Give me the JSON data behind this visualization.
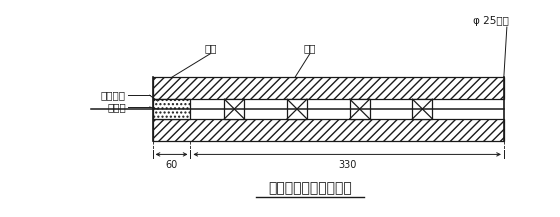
{
  "title": "周边眼装药结构示意图",
  "label_paoni": "炮泥",
  "label_zhupian": "竹片",
  "label_yaojuan": "φ 25药卷",
  "label_leiguan": "毫秒雷管",
  "label_daobao": "导爆索",
  "dim_60": "60",
  "dim_330": "330",
  "bg_color": "#ffffff",
  "line_color": "#1a1a1a",
  "title_fontsize": 10,
  "label_fontsize": 7.5
}
